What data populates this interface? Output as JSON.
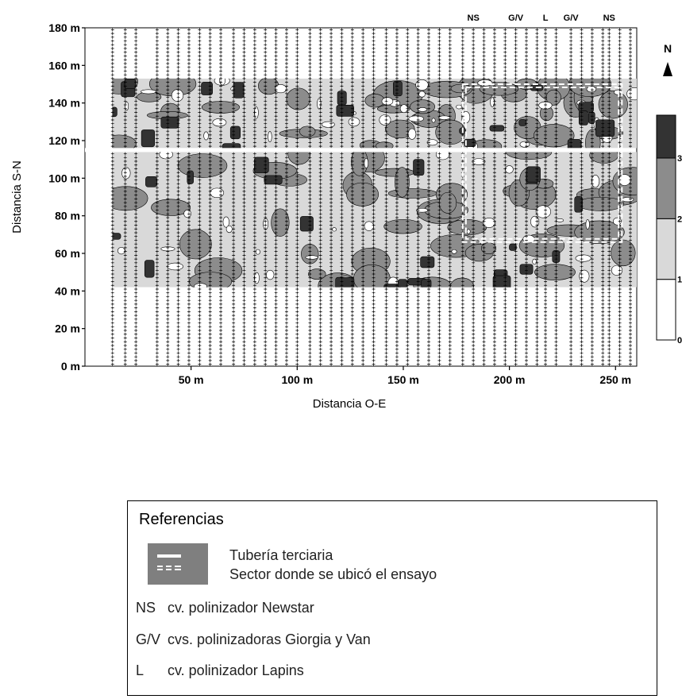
{
  "chart_data": {
    "type": "heatmap",
    "title": "",
    "xlabel": "Distancia O-E",
    "ylabel": "Distancia S-N",
    "xlim": [
      0,
      260
    ],
    "ylim": [
      0,
      180
    ],
    "x_ticks": [
      {
        "value": 50,
        "label": "50 m"
      },
      {
        "value": 100,
        "label": "100 m"
      },
      {
        "value": 150,
        "label": "150 m"
      },
      {
        "value": 200,
        "label": "200 m"
      },
      {
        "value": 250,
        "label": "250 m"
      }
    ],
    "y_ticks": [
      {
        "value": 0,
        "label": "0 m"
      },
      {
        "value": 20,
        "label": "20 m"
      },
      {
        "value": 40,
        "label": "40 m"
      },
      {
        "value": 60,
        "label": "60 m"
      },
      {
        "value": 80,
        "label": "80 m"
      },
      {
        "value": 100,
        "label": "100 m"
      },
      {
        "value": 120,
        "label": "120 m"
      },
      {
        "value": 140,
        "label": "140 m"
      },
      {
        "value": 160,
        "label": "160 m"
      },
      {
        "value": 180,
        "label": "180 m"
      }
    ],
    "colorbar": {
      "levels": [
        {
          "value": 0,
          "label": "0"
        },
        {
          "value": 1,
          "label": "1"
        },
        {
          "value": 2,
          "label": "2"
        },
        {
          "value": 3,
          "label": "3"
        }
      ],
      "colors": [
        "#ffffff",
        "#d9d9d9",
        "#8c8c8c",
        "#333333"
      ]
    },
    "data_region": {
      "x": [
        13,
        260
      ],
      "y_lower": [
        42,
        114
      ],
      "y_upper": [
        116,
        153
      ]
    },
    "grid": true,
    "north_label": "N",
    "tertiary_pipe_y": 115,
    "trial_sector": {
      "x": [
        178,
        253
      ],
      "y": [
        66,
        150
      ]
    },
    "pollinator_rows": [
      {
        "label": "NS",
        "x": 183
      },
      {
        "label": "G/V",
        "x": 203
      },
      {
        "label": "L",
        "x": 217
      },
      {
        "label": "G/V",
        "x": 229
      },
      {
        "label": "NS",
        "x": 247
      }
    ],
    "tree_rows_x": [
      13,
      19,
      24,
      34,
      39,
      44,
      49,
      54,
      59,
      64,
      70,
      75,
      80,
      85,
      90,
      95,
      100,
      106,
      111,
      116,
      121,
      126,
      131,
      136,
      142,
      147,
      152,
      157,
      162,
      167,
      172,
      178,
      183,
      188,
      193,
      198,
      203,
      208,
      213,
      217,
      222,
      229,
      234,
      239,
      244,
      247,
      252,
      257
    ],
    "tree_spacing_y": 2
  },
  "legend": {
    "title": "Referencias",
    "line_items": [
      "Tubería terciaria",
      "Sector donde se ubicó el ensayo"
    ],
    "code_items": [
      {
        "code": "NS",
        "desc": "cv. polinizador Newstar"
      },
      {
        "code": "G/V",
        "desc": "cvs. polinizadoras Giorgia y Van"
      },
      {
        "code": "L",
        "desc": "cv. polinizador Lapins"
      }
    ]
  }
}
